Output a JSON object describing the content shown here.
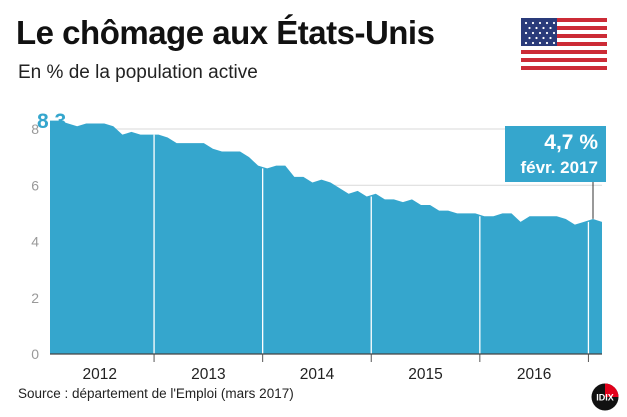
{
  "header": {
    "title": "Le chômage aux États-Unis",
    "subtitle": "En % de la population active"
  },
  "icons": {
    "flag": "us-flag-icon",
    "logo": "idix-logo"
  },
  "footer": {
    "source": "Source : département de l'Emploi (mars 2017)",
    "logo_text": "IDIX"
  },
  "colors": {
    "area": "#35a6cd",
    "callout": "#35a6cd",
    "grid": "#d9d9d9"
  },
  "chart_data": {
    "type": "area",
    "title": "Le chômage aux États-Unis",
    "subtitle": "En % de la population active",
    "ylabel": "",
    "xlabel": "",
    "ylim": [
      0,
      8.5
    ],
    "yticks": [
      0,
      2,
      4,
      6,
      8
    ],
    "year_labels": [
      "2012",
      "2013",
      "2014",
      "2015",
      "2016"
    ],
    "start_label": "8,3",
    "annotation": {
      "value": "4,7 %",
      "date": "févr. 2017"
    },
    "grid": true,
    "x": [
      "2012-01",
      "2012-02",
      "2012-03",
      "2012-04",
      "2012-05",
      "2012-06",
      "2012-07",
      "2012-08",
      "2012-09",
      "2012-10",
      "2012-11",
      "2012-12",
      "2013-01",
      "2013-02",
      "2013-03",
      "2013-04",
      "2013-05",
      "2013-06",
      "2013-07",
      "2013-08",
      "2013-09",
      "2013-10",
      "2013-11",
      "2013-12",
      "2014-01",
      "2014-02",
      "2014-03",
      "2014-04",
      "2014-05",
      "2014-06",
      "2014-07",
      "2014-08",
      "2014-09",
      "2014-10",
      "2014-11",
      "2014-12",
      "2015-01",
      "2015-02",
      "2015-03",
      "2015-04",
      "2015-05",
      "2015-06",
      "2015-07",
      "2015-08",
      "2015-09",
      "2015-10",
      "2015-11",
      "2015-12",
      "2016-01",
      "2016-02",
      "2016-03",
      "2016-04",
      "2016-05",
      "2016-06",
      "2016-07",
      "2016-08",
      "2016-09",
      "2016-10",
      "2016-11",
      "2016-12",
      "2017-01",
      "2017-02"
    ],
    "values": [
      8.3,
      8.3,
      8.2,
      8.1,
      8.2,
      8.2,
      8.2,
      8.1,
      7.8,
      7.9,
      7.8,
      7.8,
      7.8,
      7.7,
      7.5,
      7.5,
      7.5,
      7.5,
      7.3,
      7.2,
      7.2,
      7.2,
      7.0,
      6.7,
      6.6,
      6.7,
      6.7,
      6.3,
      6.3,
      6.1,
      6.2,
      6.1,
      5.9,
      5.7,
      5.8,
      5.6,
      5.7,
      5.5,
      5.5,
      5.4,
      5.5,
      5.3,
      5.3,
      5.1,
      5.1,
      5.0,
      5.0,
      5.0,
      4.9,
      4.9,
      5.0,
      5.0,
      4.7,
      4.9,
      4.9,
      4.9,
      4.9,
      4.8,
      4.6,
      4.7,
      4.8,
      4.7
    ]
  }
}
